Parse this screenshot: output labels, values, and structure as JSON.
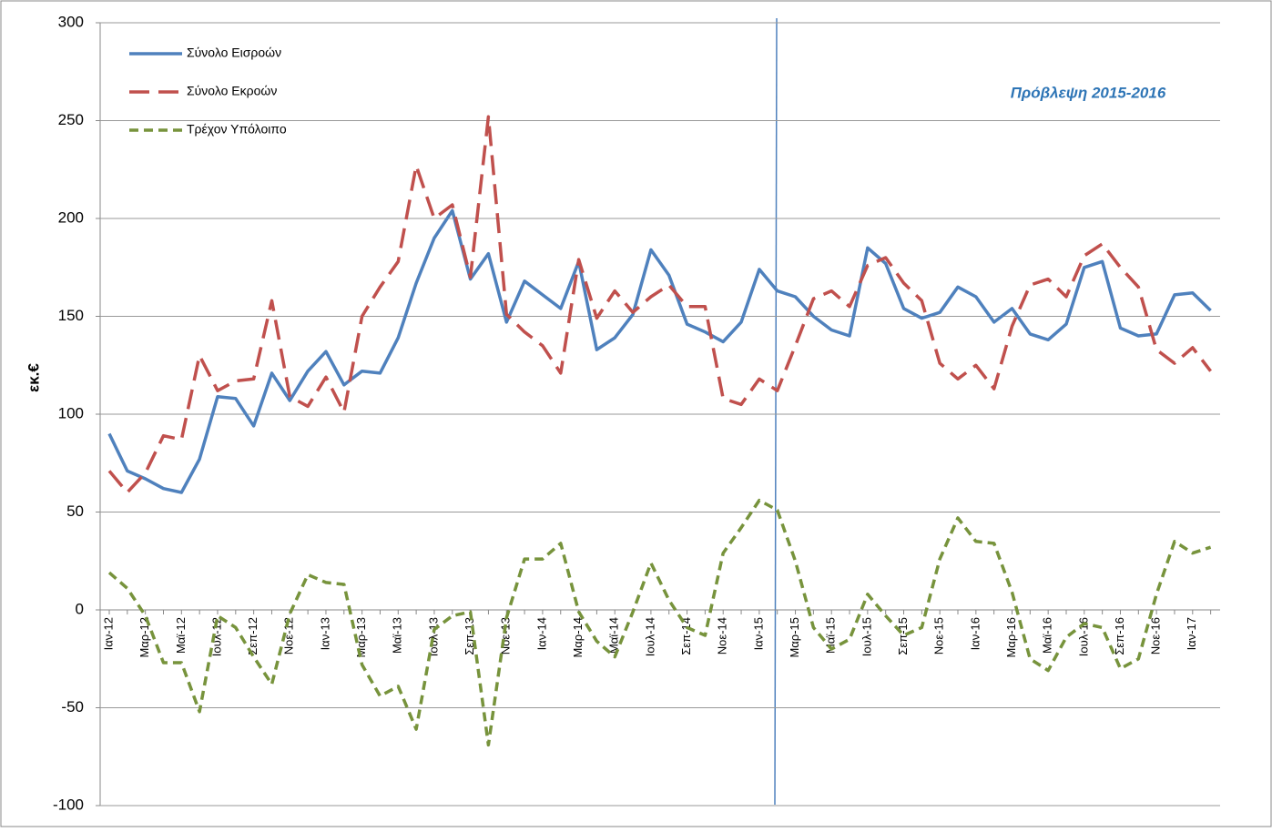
{
  "chart_data": {
    "type": "line",
    "y_label": "εκ.€",
    "annotation": "Πρόβλεψη 2015-2016",
    "categories": [
      "Ιαν-12",
      null,
      "Μαρ-12",
      null,
      "Μαϊ-12",
      null,
      "Ιουλ-12",
      null,
      "Σεπ-12",
      null,
      "Νοε-12",
      null,
      "Ιαν-13",
      null,
      "Μαρ-13",
      null,
      "Μαϊ-13",
      null,
      "Ιουλ-13",
      null,
      "Σεπ-13",
      null,
      "Νοε-13",
      null,
      "Ιαν-14",
      null,
      "Μαρ-14",
      null,
      "Μαϊ-14",
      null,
      "Ιουλ-14",
      null,
      "Σεπ-14",
      null,
      "Νοε-14",
      null,
      "Ιαν-15",
      null,
      "Μαρ-15",
      null,
      "Μαϊ-15",
      null,
      "Ιουλ-15",
      null,
      "Σεπ-15",
      null,
      "Νοε-15",
      null,
      "Ιαν-16",
      null,
      "Μαρ-16",
      null,
      "Μαϊ-16",
      null,
      "Ιουλ-16",
      null,
      "Σεπ-16",
      null,
      "Νοε-16",
      null,
      "Ιαν-17",
      null
    ],
    "series": [
      {
        "name": "Σύνολο Εισροών",
        "color": "#4f81bd",
        "dash": "none",
        "values": [
          90,
          71,
          67,
          62,
          60,
          77,
          109,
          108,
          94,
          121,
          107,
          122,
          132,
          115,
          122,
          121,
          139,
          167,
          190,
          204,
          169,
          182,
          147,
          168,
          161,
          154,
          178,
          133,
          139,
          151,
          184,
          171,
          146,
          142,
          137,
          147,
          174,
          163,
          160,
          150,
          143,
          140,
          185,
          177,
          154,
          149,
          152,
          165,
          160,
          147,
          154,
          141,
          138,
          146,
          175,
          178,
          144,
          140,
          141,
          161,
          162,
          153
        ]
      },
      {
        "name": "Σύνολο Εκροών",
        "color": "#c0504d",
        "dash": "22,10",
        "values": [
          71,
          60,
          70,
          89,
          87,
          130,
          112,
          117,
          118,
          158,
          109,
          104,
          119,
          101,
          150,
          165,
          178,
          227,
          200,
          207,
          170,
          252,
          151,
          142,
          135,
          121,
          179,
          149,
          163,
          152,
          160,
          166,
          155,
          155,
          108,
          105,
          118,
          112,
          135,
          159,
          163,
          155,
          176,
          180,
          167,
          158,
          126,
          118,
          125,
          113,
          145,
          166,
          169,
          160,
          181,
          187,
          175,
          165,
          133,
          126,
          134,
          122
        ]
      },
      {
        "name": "Τρέχον Υπόλοιπο",
        "color": "#77933c",
        "dash": "10,6",
        "values": [
          19,
          11,
          -3,
          -27,
          -27,
          -52,
          -3,
          -9,
          -24,
          -38,
          -2,
          18,
          14,
          13,
          -28,
          -44,
          -39,
          -61,
          -10,
          -3,
          -1,
          -69,
          -4,
          26,
          26,
          34,
          -1,
          -16,
          -24,
          -1,
          24,
          5,
          -9,
          -13,
          29,
          42,
          56,
          51,
          25,
          -9,
          -20,
          -15,
          8,
          -3,
          -13,
          -9,
          26,
          47,
          35,
          34,
          9,
          -25,
          -31,
          -14,
          -7,
          -9,
          -30,
          -25,
          8,
          35,
          29,
          32
        ]
      }
    ],
    "ylim": [
      -100,
      300
    ],
    "yticks": [
      -100,
      -50,
      0,
      50,
      100,
      150,
      200,
      250,
      300
    ],
    "grid": true
  }
}
